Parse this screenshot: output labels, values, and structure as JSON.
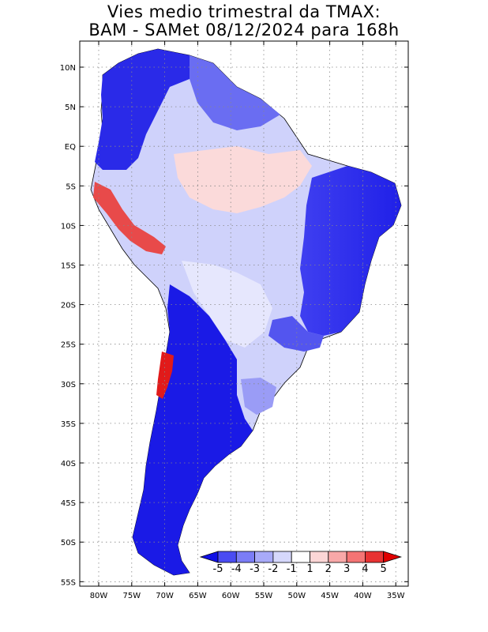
{
  "title": {
    "line1": "Vies medio trimestral da TMAX:",
    "line2": "BAM - SAMet 08/12/2024  para 168h"
  },
  "map": {
    "region": "South America",
    "lat_labels": [
      "10N",
      "5N",
      "EQ",
      "5S",
      "10S",
      "15S",
      "20S",
      "25S",
      "30S",
      "35S",
      "40S",
      "45S",
      "50S",
      "55S"
    ],
    "lon_labels": [
      "80W",
      "75W",
      "70W",
      "65W",
      "60W",
      "55W",
      "50W",
      "45W",
      "40W",
      "35W"
    ],
    "grid": "dotted"
  },
  "colorbar": {
    "labels": [
      "-5",
      "-4",
      "-3",
      "-2",
      "-1",
      "1",
      "2",
      "3",
      "4",
      "5"
    ],
    "colors": [
      "#1010e6",
      "#4a4cf2",
      "#7b7df6",
      "#a8aaf8",
      "#d6d8fc",
      "#ffffff",
      "#fcd6d6",
      "#f8a8a8",
      "#f47474",
      "#e83232",
      "#e00000"
    ],
    "extend": "both"
  }
}
